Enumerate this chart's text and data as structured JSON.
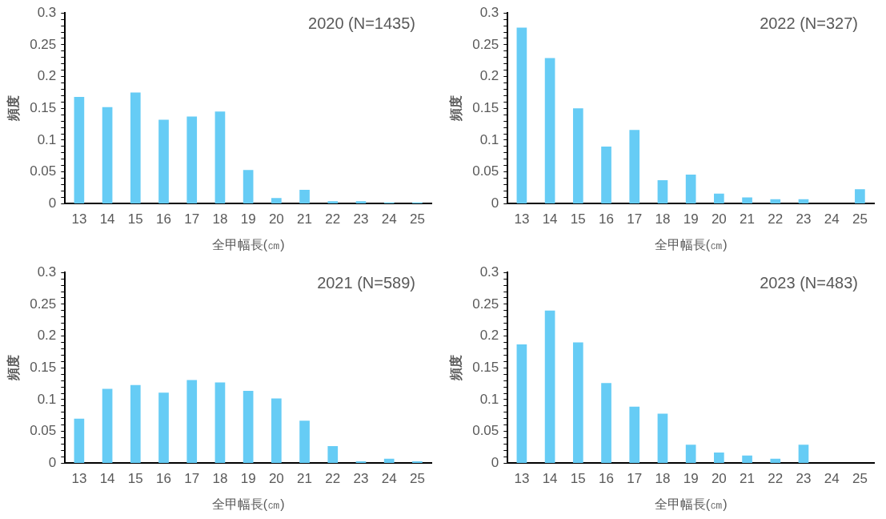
{
  "chart_data": [
    {
      "type": "bar",
      "title": "2020 (N=1435)",
      "xlabel": "全甲幅長(㎝)",
      "ylabel": "頻度",
      "categories": [
        "13",
        "14",
        "15",
        "16",
        "17",
        "18",
        "19",
        "20",
        "21",
        "22",
        "23",
        "24",
        "25"
      ],
      "values": [
        0.168,
        0.152,
        0.175,
        0.132,
        0.137,
        0.145,
        0.053,
        0.009,
        0.022,
        0.004,
        0.004,
        0.002,
        0.002
      ],
      "color": "#66ccf5",
      "ylim": [
        0,
        0.3
      ],
      "yticks": [
        0,
        {
          "value": 0.01,
          "label": null
        },
        {
          "value": 0.02,
          "label": null
        },
        {
          "value": 0.03,
          "label": null
        },
        {
          "value": 0.04,
          "label": null
        },
        0.05,
        {
          "value": 0.06,
          "label": null
        },
        {
          "value": 0.07,
          "label": null
        },
        {
          "value": 0.08,
          "label": null
        },
        {
          "value": 0.09,
          "label": null
        },
        0.1,
        {
          "value": 0.11,
          "label": null
        },
        {
          "value": 0.12,
          "label": null
        },
        {
          "value": 0.13,
          "label": null
        },
        {
          "value": 0.14,
          "label": null
        },
        0.15,
        {
          "value": 0.16,
          "label": null
        },
        {
          "value": 0.17,
          "label": null
        },
        {
          "value": 0.18,
          "label": null
        },
        {
          "value": 0.19,
          "label": null
        },
        0.2,
        {
          "value": 0.21,
          "label": null
        },
        {
          "value": 0.22,
          "label": null
        },
        {
          "value": 0.23,
          "label": null
        },
        {
          "value": 0.24,
          "label": null
        },
        0.25,
        {
          "value": 0.26,
          "label": null
        },
        {
          "value": 0.27,
          "label": null
        },
        {
          "value": 0.28,
          "label": null
        },
        {
          "value": 0.29,
          "label": null
        },
        0.3
      ],
      "legend": false
    },
    {
      "type": "bar",
      "title": "2022 (N=327)",
      "xlabel": "全甲幅長(㎝)",
      "ylabel": "頻度",
      "categories": [
        "13",
        "14",
        "15",
        "16",
        "17",
        "18",
        "19",
        "20",
        "21",
        "22",
        "23",
        "24",
        "25"
      ],
      "values": [
        0.277,
        0.229,
        0.15,
        0.09,
        0.116,
        0.037,
        0.046,
        0.016,
        0.01,
        0.007,
        0.007,
        0,
        0.023
      ],
      "color": "#66ccf5",
      "ylim": [
        0,
        0.3
      ],
      "yticks": [
        0,
        {
          "value": 0.01,
          "label": null
        },
        {
          "value": 0.02,
          "label": null
        },
        {
          "value": 0.03,
          "label": null
        },
        {
          "value": 0.04,
          "label": null
        },
        0.05,
        {
          "value": 0.06,
          "label": null
        },
        {
          "value": 0.07,
          "label": null
        },
        {
          "value": 0.08,
          "label": null
        },
        {
          "value": 0.09,
          "label": null
        },
        0.1,
        {
          "value": 0.11,
          "label": null
        },
        {
          "value": 0.12,
          "label": null
        },
        {
          "value": 0.13,
          "label": null
        },
        {
          "value": 0.14,
          "label": null
        },
        0.15,
        {
          "value": 0.16,
          "label": null
        },
        {
          "value": 0.17,
          "label": null
        },
        {
          "value": 0.18,
          "label": null
        },
        {
          "value": 0.19,
          "label": null
        },
        0.2,
        {
          "value": 0.21,
          "label": null
        },
        {
          "value": 0.22,
          "label": null
        },
        {
          "value": 0.23,
          "label": null
        },
        {
          "value": 0.24,
          "label": null
        },
        0.25,
        {
          "value": 0.26,
          "label": null
        },
        {
          "value": 0.27,
          "label": null
        },
        {
          "value": 0.28,
          "label": null
        },
        {
          "value": 0.29,
          "label": null
        },
        0.3
      ],
      "legend": false
    },
    {
      "type": "bar",
      "title": "2021 (N=589)",
      "xlabel": "全甲幅長(㎝)",
      "ylabel": "頻度",
      "categories": [
        "13",
        "14",
        "15",
        "16",
        "17",
        "18",
        "19",
        "20",
        "21",
        "22",
        "23",
        "24",
        "25"
      ],
      "values": [
        0.07,
        0.117,
        0.123,
        0.111,
        0.131,
        0.127,
        0.114,
        0.102,
        0.067,
        0.027,
        0.003,
        0.007,
        0.003
      ],
      "color": "#66ccf5",
      "ylim": [
        0,
        0.3
      ],
      "yticks": [
        0,
        {
          "value": 0.01,
          "label": null
        },
        {
          "value": 0.02,
          "label": null
        },
        {
          "value": 0.03,
          "label": null
        },
        {
          "value": 0.04,
          "label": null
        },
        0.05,
        {
          "value": 0.06,
          "label": null
        },
        {
          "value": 0.07,
          "label": null
        },
        {
          "value": 0.08,
          "label": null
        },
        {
          "value": 0.09,
          "label": null
        },
        0.1,
        {
          "value": 0.11,
          "label": null
        },
        {
          "value": 0.12,
          "label": null
        },
        {
          "value": 0.13,
          "label": null
        },
        {
          "value": 0.14,
          "label": null
        },
        0.15,
        {
          "value": 0.16,
          "label": null
        },
        {
          "value": 0.17,
          "label": null
        },
        {
          "value": 0.18,
          "label": null
        },
        {
          "value": 0.19,
          "label": null
        },
        0.2,
        {
          "value": 0.21,
          "label": null
        },
        {
          "value": 0.22,
          "label": null
        },
        {
          "value": 0.23,
          "label": null
        },
        {
          "value": 0.24,
          "label": null
        },
        0.25,
        {
          "value": 0.26,
          "label": null
        },
        {
          "value": 0.27,
          "label": null
        },
        {
          "value": 0.28,
          "label": null
        },
        {
          "value": 0.29,
          "label": null
        },
        0.3
      ],
      "legend": false
    },
    {
      "type": "bar",
      "title": "2023 (N=483)",
      "xlabel": "全甲幅長(㎝)",
      "ylabel": "頻度",
      "categories": [
        "13",
        "14",
        "15",
        "16",
        "17",
        "18",
        "19",
        "20",
        "21",
        "22",
        "23",
        "24",
        "25"
      ],
      "values": [
        0.187,
        0.24,
        0.19,
        0.126,
        0.089,
        0.078,
        0.029,
        0.017,
        0.012,
        0.007,
        0.029,
        0,
        0
      ],
      "color": "#66ccf5",
      "ylim": [
        0,
        0.3
      ],
      "yticks": [
        0,
        {
          "value": 0.01,
          "label": null
        },
        {
          "value": 0.02,
          "label": null
        },
        {
          "value": 0.03,
          "label": null
        },
        {
          "value": 0.04,
          "label": null
        },
        0.05,
        {
          "value": 0.06,
          "label": null
        },
        {
          "value": 0.07,
          "label": null
        },
        {
          "value": 0.08,
          "label": null
        },
        {
          "value": 0.09,
          "label": null
        },
        0.1,
        {
          "value": 0.11,
          "label": null
        },
        {
          "value": 0.12,
          "label": null
        },
        {
          "value": 0.13,
          "label": null
        },
        {
          "value": 0.14,
          "label": null
        },
        0.15,
        {
          "value": 0.16,
          "label": null
        },
        {
          "value": 0.17,
          "label": null
        },
        {
          "value": 0.18,
          "label": null
        },
        {
          "value": 0.19,
          "label": null
        },
        0.2,
        {
          "value": 0.21,
          "label": null
        },
        {
          "value": 0.22,
          "label": null
        },
        {
          "value": 0.23,
          "label": null
        },
        {
          "value": 0.24,
          "label": null
        },
        0.25,
        {
          "value": 0.26,
          "label": null
        },
        {
          "value": 0.27,
          "label": null
        },
        {
          "value": 0.28,
          "label": null
        },
        {
          "value": 0.29,
          "label": null
        },
        0.3
      ],
      "legend": false
    }
  ]
}
